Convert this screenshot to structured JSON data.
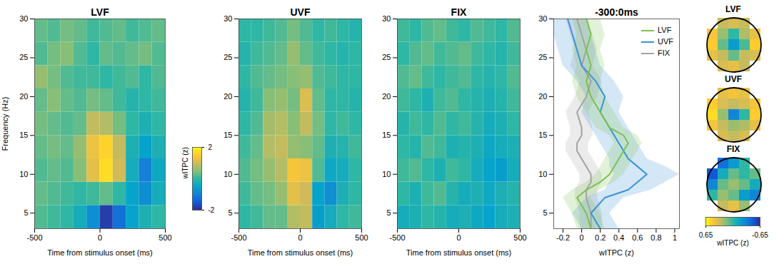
{
  "chart_data": [
    {
      "type": "heatmap",
      "title": "LVF",
      "x_label": "Time from stimulus onset (ms)",
      "y_label": "Frequency (Hz)",
      "xlim": [
        -500,
        500
      ],
      "xticks": [
        -500,
        0,
        500
      ],
      "ylim": [
        3,
        30
      ],
      "yticks": [
        5,
        10,
        15,
        20,
        25,
        30
      ],
      "time_bins": [
        -500,
        -400,
        -300,
        -200,
        -100,
        0,
        100,
        200,
        300,
        400,
        500
      ],
      "freq_bins": [
        3,
        6,
        9,
        12,
        15,
        18,
        21,
        24,
        27,
        30
      ],
      "cells": [
        [
          0.2,
          0.1,
          0.0,
          -0.3,
          -0.8,
          -1.8,
          -1.2,
          -0.5,
          -0.2,
          0.0
        ],
        [
          0.3,
          0.2,
          0.1,
          0.0,
          0.1,
          0.3,
          0.0,
          -0.5,
          -0.8,
          -0.3
        ],
        [
          0.2,
          0.3,
          0.2,
          0.5,
          1.2,
          1.7,
          1.0,
          -0.3,
          -1.0,
          -0.4
        ],
        [
          0.3,
          0.4,
          0.3,
          0.6,
          1.3,
          1.6,
          0.9,
          -0.2,
          -0.5,
          -0.2
        ],
        [
          0.4,
          0.3,
          0.2,
          0.3,
          0.9,
          0.8,
          0.4,
          0.0,
          -0.2,
          0.0
        ],
        [
          0.3,
          0.5,
          0.3,
          0.2,
          0.4,
          0.3,
          0.1,
          -0.1,
          0.0,
          0.1
        ],
        [
          0.6,
          0.4,
          0.2,
          0.1,
          0.1,
          0.0,
          0.1,
          0.2,
          0.0,
          0.2
        ],
        [
          0.2,
          0.4,
          0.5,
          0.2,
          0.0,
          0.3,
          0.2,
          0.3,
          0.4,
          0.2
        ],
        [
          0.3,
          0.2,
          0.4,
          0.3,
          0.1,
          0.2,
          0.3,
          0.1,
          0.2,
          0.3
        ]
      ],
      "colorbar": {
        "label": "wITPC (z)",
        "range": [
          -2,
          2
        ],
        "ticks": [
          -2,
          2
        ]
      }
    },
    {
      "type": "heatmap",
      "title": "UVF",
      "x_label": "Time from stimulus onset (ms)",
      "xlim": [
        -500,
        500
      ],
      "xticks": [
        -500,
        0,
        500
      ],
      "ylim": [
        3,
        30
      ],
      "yticks": [
        5,
        10,
        15,
        20,
        25,
        30
      ],
      "time_bins": [
        -500,
        -400,
        -300,
        -200,
        -100,
        0,
        100,
        200,
        300,
        400,
        500
      ],
      "freq_bins": [
        3,
        6,
        9,
        12,
        15,
        18,
        21,
        24,
        27,
        30
      ],
      "cells": [
        [
          0.0,
          0.1,
          0.3,
          0.3,
          0.8,
          0.9,
          -0.6,
          -0.3,
          0.0,
          0.1
        ],
        [
          0.1,
          0.3,
          0.4,
          0.6,
          1.2,
          1.0,
          -0.5,
          -0.8,
          -0.2,
          0.0
        ],
        [
          0.2,
          0.4,
          0.6,
          0.8,
          1.4,
          1.3,
          0.2,
          -0.4,
          -0.3,
          0.0
        ],
        [
          0.1,
          0.3,
          0.8,
          0.9,
          0.6,
          0.5,
          0.3,
          -0.2,
          -0.1,
          0.1
        ],
        [
          0.0,
          0.2,
          0.7,
          0.8,
          0.5,
          0.9,
          0.4,
          0.0,
          0.1,
          0.0
        ],
        [
          -0.1,
          0.1,
          0.5,
          0.6,
          0.4,
          1.1,
          0.3,
          0.0,
          0.0,
          -0.1
        ],
        [
          0.0,
          0.2,
          0.3,
          0.4,
          0.5,
          0.6,
          0.2,
          0.1,
          0.0,
          0.0
        ],
        [
          -0.1,
          0.1,
          0.2,
          0.3,
          0.6,
          0.3,
          0.1,
          0.0,
          -0.1,
          0.0
        ],
        [
          0.0,
          0.0,
          0.1,
          0.2,
          0.4,
          0.2,
          0.0,
          0.1,
          0.0,
          -0.1
        ]
      ]
    },
    {
      "type": "heatmap",
      "title": "FIX",
      "x_label": "Time from stimulus onset (ms)",
      "xlim": [
        -500,
        500
      ],
      "xticks": [
        -500,
        0,
        500
      ],
      "ylim": [
        3,
        30
      ],
      "yticks": [
        5,
        10,
        15,
        20,
        25,
        30
      ],
      "time_bins": [
        -500,
        -400,
        -300,
        -200,
        -100,
        0,
        100,
        200,
        300,
        400,
        500
      ],
      "freq_bins": [
        3,
        6,
        9,
        12,
        15,
        18,
        21,
        24,
        27,
        30
      ],
      "cells": [
        [
          -0.3,
          -0.2,
          0.0,
          -0.1,
          -0.3,
          -0.2,
          -0.4,
          -0.5,
          -0.3,
          -0.2
        ],
        [
          0.0,
          -0.2,
          0.1,
          0.2,
          -0.1,
          -0.3,
          -0.2,
          -0.4,
          -0.2,
          -0.1
        ],
        [
          0.1,
          0.2,
          0.0,
          -0.2,
          0.1,
          0.0,
          -0.3,
          -0.5,
          -0.6,
          -0.3
        ],
        [
          0.0,
          -0.1,
          0.2,
          0.1,
          -0.2,
          -0.1,
          -0.2,
          -0.4,
          -0.3,
          -0.2
        ],
        [
          -0.1,
          0.1,
          0.0,
          0.2,
          0.0,
          0.1,
          -0.1,
          -0.3,
          -0.2,
          0.0
        ],
        [
          0.1,
          0.0,
          -0.2,
          0.1,
          0.2,
          0.0,
          -0.1,
          -0.2,
          -0.1,
          0.1
        ],
        [
          0.2,
          0.3,
          0.1,
          0.0,
          0.1,
          0.2,
          0.0,
          -0.1,
          0.0,
          0.2
        ],
        [
          0.0,
          0.2,
          0.3,
          0.1,
          0.2,
          0.3,
          0.1,
          0.0,
          -0.1,
          0.1
        ],
        [
          0.1,
          0.0,
          0.2,
          0.3,
          0.1,
          0.0,
          0.2,
          0.1,
          0.0,
          0.2
        ]
      ]
    },
    {
      "type": "line",
      "title": "-300:0ms",
      "x_label": "wITPC (z)",
      "orientation": "horizontal",
      "xlim": [
        -0.3,
        1.05
      ],
      "xticks": [
        -0.2,
        0,
        0.2,
        0.4,
        0.6,
        0.8,
        1
      ],
      "ylim": [
        3,
        30
      ],
      "yticks": [
        5,
        10,
        15,
        20,
        25,
        30
      ],
      "legend": "top-right",
      "y": [
        3,
        5,
        7,
        8,
        9,
        10,
        11,
        12,
        13,
        14,
        15,
        16,
        18,
        20,
        22,
        24,
        26,
        28,
        30
      ],
      "series": [
        {
          "name": "LVF",
          "color": "#7cc24e",
          "values": [
            0.1,
            0.05,
            -0.05,
            0.05,
            0.2,
            0.3,
            0.35,
            0.4,
            0.45,
            0.5,
            0.45,
            0.3,
            0.2,
            0.1,
            0.05,
            0.1,
            0.05,
            0.1,
            0.05
          ],
          "lower": [
            -0.05,
            -0.1,
            -0.2,
            -0.1,
            0.05,
            0.15,
            0.2,
            0.25,
            0.3,
            0.35,
            0.3,
            0.15,
            0.05,
            -0.05,
            -0.1,
            -0.05,
            -0.1,
            -0.05,
            -0.1
          ],
          "upper": [
            0.25,
            0.2,
            0.1,
            0.2,
            0.35,
            0.45,
            0.5,
            0.55,
            0.6,
            0.65,
            0.6,
            0.45,
            0.35,
            0.25,
            0.2,
            0.25,
            0.2,
            0.25,
            0.2
          ]
        },
        {
          "name": "UVF",
          "color": "#3a92d8",
          "values": [
            0.2,
            0.1,
            0.25,
            0.5,
            0.6,
            0.7,
            0.6,
            0.5,
            0.45,
            0.4,
            0.35,
            0.3,
            0.2,
            0.25,
            0.15,
            0.0,
            -0.05,
            -0.1,
            -0.15
          ],
          "lower": [
            0.0,
            -0.1,
            0.05,
            0.25,
            0.3,
            0.35,
            0.3,
            0.3,
            0.25,
            0.2,
            0.15,
            0.1,
            0.0,
            0.05,
            -0.05,
            -0.2,
            -0.25,
            -0.3,
            -0.35
          ],
          "upper": [
            0.4,
            0.3,
            0.45,
            0.75,
            0.9,
            1.05,
            0.9,
            0.7,
            0.65,
            0.6,
            0.55,
            0.5,
            0.4,
            0.45,
            0.35,
            0.2,
            0.15,
            0.1,
            0.05
          ]
        },
        {
          "name": "FIX",
          "color": "#a3a3a3",
          "values": [
            0.1,
            0.1,
            0.05,
            0.05,
            0.1,
            0.1,
            0.05,
            0.0,
            -0.05,
            -0.05,
            0.0,
            0.0,
            -0.05,
            0.05,
            0.1,
            0.0,
            0.05,
            0.0,
            -0.05
          ],
          "lower": [
            -0.02,
            -0.02,
            -0.07,
            -0.07,
            -0.02,
            -0.02,
            -0.07,
            -0.12,
            -0.17,
            -0.17,
            -0.12,
            -0.12,
            -0.17,
            -0.07,
            -0.02,
            -0.12,
            -0.07,
            -0.12,
            -0.17
          ],
          "upper": [
            0.22,
            0.22,
            0.17,
            0.17,
            0.22,
            0.22,
            0.17,
            0.12,
            0.07,
            0.07,
            0.12,
            0.12,
            0.07,
            0.17,
            0.22,
            0.12,
            0.17,
            0.12,
            0.07
          ]
        }
      ]
    },
    {
      "type": "topomap",
      "panels": [
        {
          "title": "LVF",
          "cells": [
            [
              null,
              0.3,
              0.35,
              0.3,
              null
            ],
            [
              0.45,
              0.2,
              0.0,
              0.25,
              0.4
            ],
            [
              0.5,
              0.1,
              -0.2,
              0.05,
              0.5
            ],
            [
              0.4,
              0.3,
              0.1,
              0.3,
              0.35
            ],
            [
              null,
              0.35,
              0.4,
              0.3,
              null
            ]
          ]
        },
        {
          "title": "UVF",
          "cells": [
            [
              null,
              0.4,
              0.45,
              0.4,
              null
            ],
            [
              0.5,
              0.35,
              0.3,
              0.35,
              0.45
            ],
            [
              0.55,
              0.2,
              -0.3,
              0.0,
              0.5
            ],
            [
              0.45,
              0.3,
              0.2,
              0.25,
              0.4
            ],
            [
              null,
              0.35,
              0.3,
              0.35,
              null
            ]
          ]
        },
        {
          "title": "FIX",
          "cells": [
            [
              null,
              -0.4,
              -0.2,
              0.0,
              null
            ],
            [
              -0.5,
              -0.1,
              0.1,
              0.0,
              0.1
            ],
            [
              -0.3,
              0.1,
              0.2,
              0.1,
              -0.1
            ],
            [
              0.0,
              0.2,
              0.1,
              -0.2,
              -0.3
            ],
            [
              null,
              0.3,
              0.4,
              0.2,
              null
            ]
          ]
        }
      ],
      "colorbar": {
        "label": "wITPC (z)",
        "range": [
          0.65,
          -0.65
        ],
        "ticks": [
          0.65,
          -0.65
        ]
      }
    }
  ]
}
